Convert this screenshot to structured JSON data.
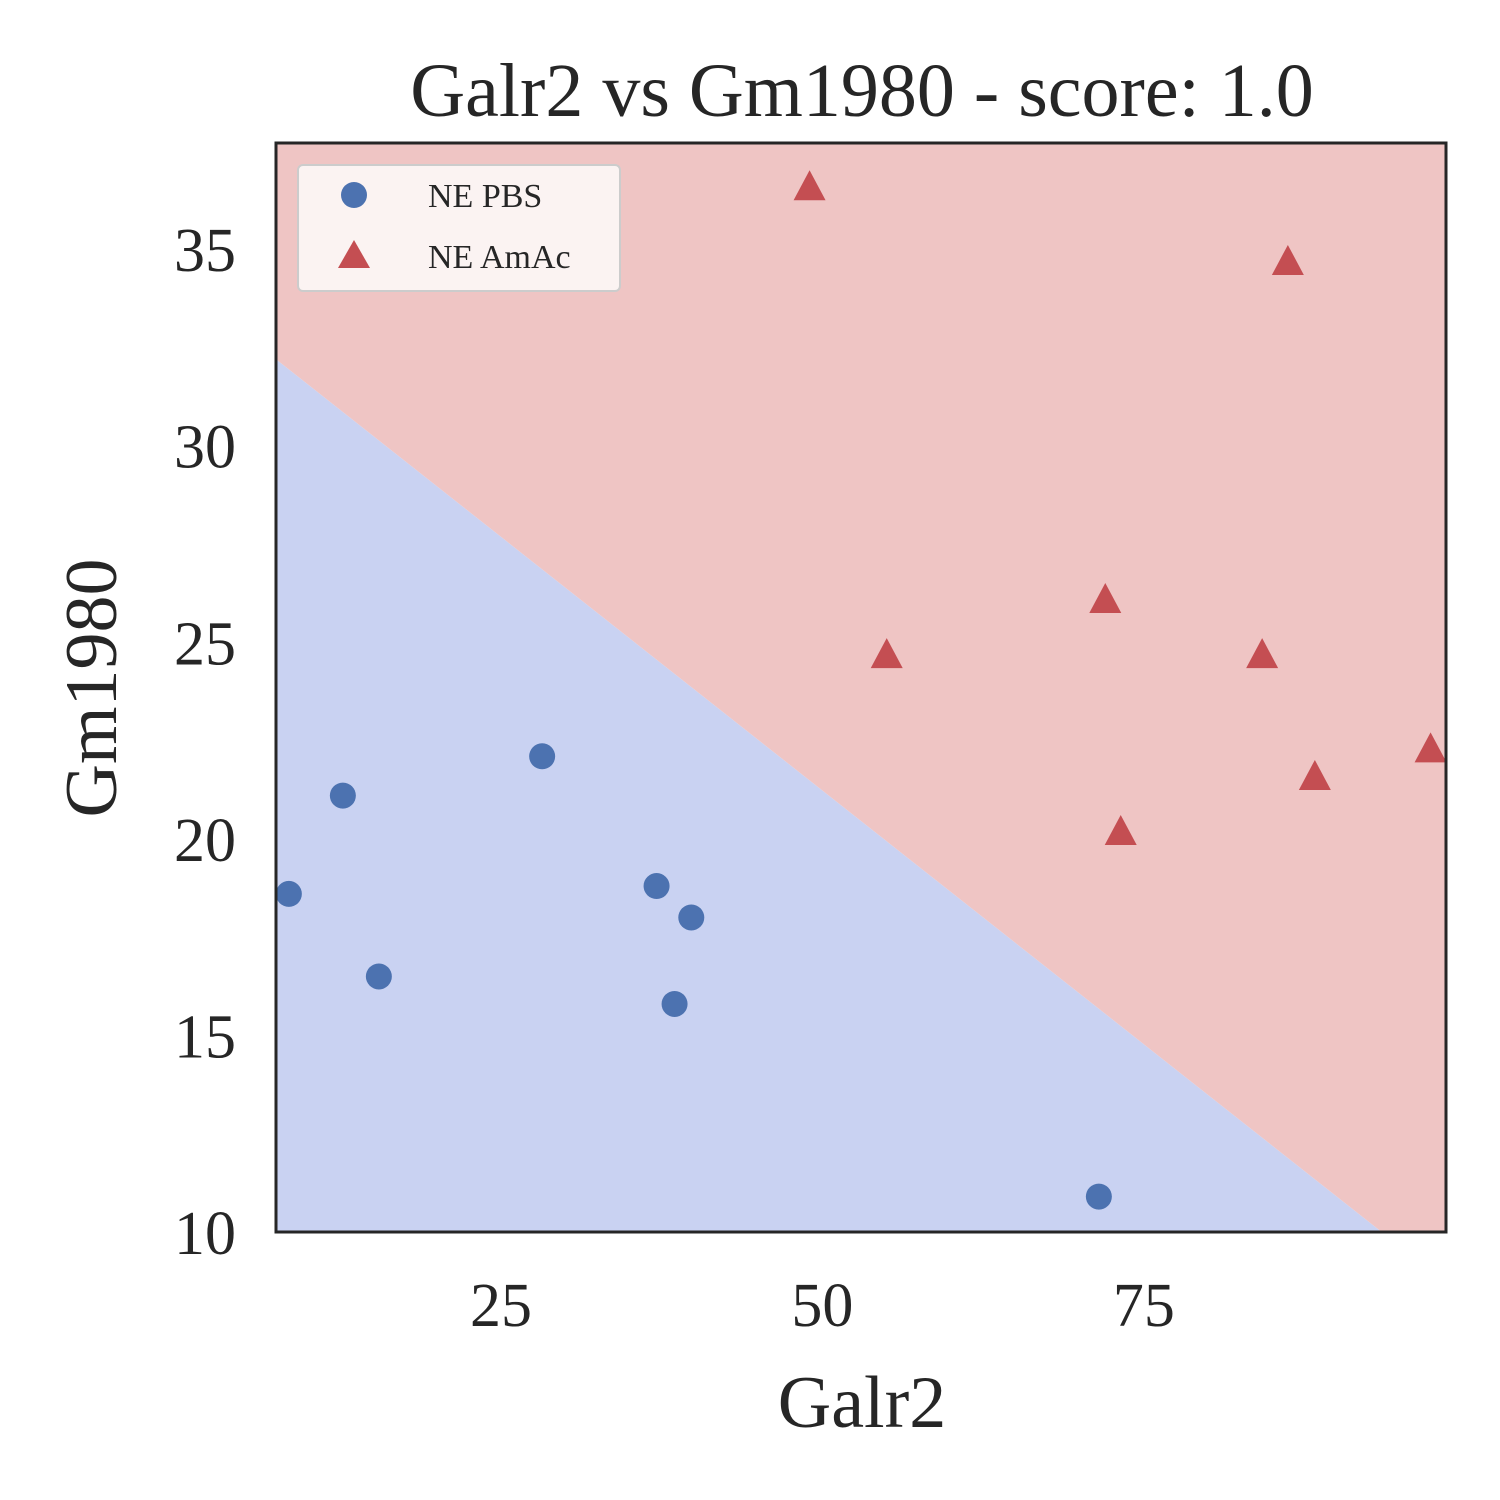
{
  "chart_data": {
    "type": "scatter",
    "title": "Galr2 vs Gm1980 - score: 1.0",
    "xlabel": "Galr2",
    "ylabel": "Gm1980",
    "xlim": [
      7.5,
      98.5
    ],
    "ylim": [
      10,
      37.7
    ],
    "xticks": [
      25,
      50,
      75
    ],
    "yticks": [
      10,
      15,
      20,
      25,
      30,
      35
    ],
    "grid": false,
    "legend_position": "top-left",
    "decision_boundary": {
      "points": [
        [
          7.5,
          32.2
        ],
        [
          93.5,
          10
        ]
      ],
      "regions": [
        {
          "class": "NE PBS",
          "side": "below",
          "color": "#c9d2f2"
        },
        {
          "class": "NE AmAc",
          "side": "above",
          "color": "#efc5c4"
        }
      ]
    },
    "series": [
      {
        "name": "NE PBS",
        "marker": "circle",
        "color": "#4c72b0",
        "points": [
          [
            8.5,
            18.6
          ],
          [
            12.7,
            21.1
          ],
          [
            15.5,
            16.5
          ],
          [
            28.2,
            22.1
          ],
          [
            37.1,
            18.8
          ],
          [
            38.5,
            15.8
          ],
          [
            39.8,
            18.0
          ],
          [
            71.5,
            10.9
          ]
        ]
      },
      {
        "name": "NE AmAc",
        "marker": "triangle",
        "color": "#c44e52",
        "points": [
          [
            49.0,
            36.6
          ],
          [
            55.0,
            24.7
          ],
          [
            72.0,
            26.1
          ],
          [
            73.2,
            20.2
          ],
          [
            84.2,
            24.7
          ],
          [
            86.2,
            34.7
          ],
          [
            88.3,
            21.6
          ],
          [
            97.3,
            22.3
          ]
        ]
      }
    ]
  }
}
